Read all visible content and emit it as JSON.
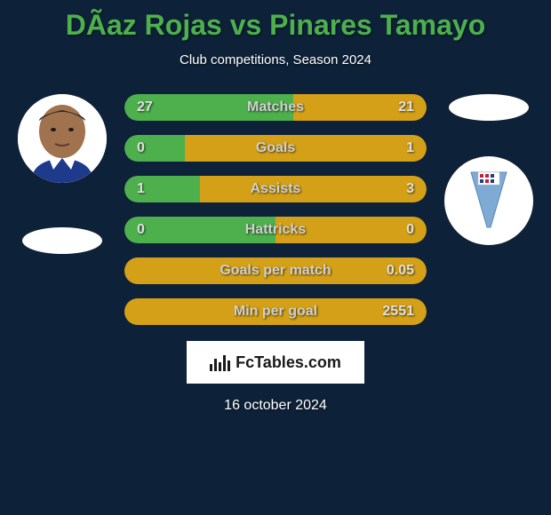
{
  "header": {
    "title": "DÃ­az Rojas vs Pinares Tamayo",
    "subtitle": "Club competitions, Season 2024"
  },
  "colors": {
    "background": "#0d2138",
    "title_color": "#4db04d",
    "left_fill": "#4db04d",
    "right_fill": "#d4a017",
    "bar_bg": "#2d2d2d",
    "text": "#ffffff",
    "stat_text": "#e0e0e0"
  },
  "stats": [
    {
      "label": "Matches",
      "left_value": "27",
      "right_value": "21",
      "left_pct": 56,
      "right_pct": 44
    },
    {
      "label": "Goals",
      "left_value": "0",
      "right_value": "1",
      "left_pct": 20,
      "right_pct": 80
    },
    {
      "label": "Assists",
      "left_value": "1",
      "right_value": "3",
      "left_pct": 25,
      "right_pct": 75
    },
    {
      "label": "Hattricks",
      "left_value": "0",
      "right_value": "0",
      "left_pct": 50,
      "right_pct": 50
    },
    {
      "label": "Goals per match",
      "left_value": "",
      "right_value": "0.05",
      "left_pct": 0,
      "right_pct": 100
    },
    {
      "label": "Min per goal",
      "left_value": "",
      "right_value": "2551",
      "left_pct": 0,
      "right_pct": 100
    }
  ],
  "footer": {
    "logo_text": "FcTables.com",
    "date": "16 october 2024"
  },
  "player_left": {
    "skin_color": "#a0724e",
    "jersey_color": "#1e3a8a"
  },
  "club_right": {
    "pennant_color": "#7faad4",
    "badge_colors": [
      "#c41e3a",
      "#c41e3a",
      "#1e3a8a",
      "#1e3a8a"
    ]
  }
}
